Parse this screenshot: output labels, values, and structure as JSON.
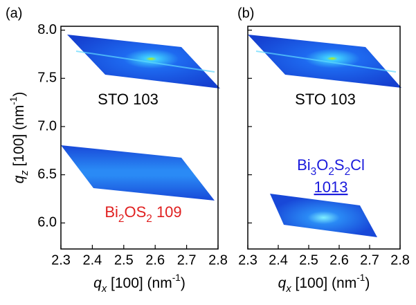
{
  "chart_data": [
    {
      "type": "map",
      "panel_label": "(a)",
      "xlabel": [
        {
          "text": "q",
          "style": "italic"
        },
        {
          "text": "x",
          "style": "sub italic"
        },
        {
          "text": " [100] (nm",
          "style": ""
        },
        {
          "text": "-1",
          "style": "sup"
        },
        {
          "text": ")",
          "style": ""
        }
      ],
      "ylabel": [
        {
          "text": "q",
          "style": "italic"
        },
        {
          "text": "z",
          "style": "sub italic"
        },
        {
          "text": " [100] (nm",
          "style": ""
        },
        {
          "text": "-1",
          "style": "sup"
        },
        {
          "text": ")",
          "style": ""
        }
      ],
      "xlim": [
        2.3,
        2.8
      ],
      "xticks": [
        2.3,
        2.4,
        2.5,
        2.6,
        2.7,
        2.8
      ],
      "ylim": [
        5.73,
        8.04
      ],
      "yticks": [
        {
          "value": 8,
          "label": "8.0"
        },
        7.5,
        {
          "value": 7,
          "label": "7.0"
        },
        6.5,
        {
          "value": 6,
          "label": "6.0"
        }
      ],
      "annotations": [
        {
          "color": "#000000",
          "parts": [
            {
              "text": "STO 103",
              "style": ""
            }
          ]
        },
        {
          "color": "#e02020",
          "parts": [
            {
              "text": "Bi",
              "style": ""
            },
            {
              "text": "2",
              "style": "sub"
            },
            {
              "text": "OS",
              "style": ""
            },
            {
              "text": "2",
              "style": "sub"
            },
            {
              "text": " 109",
              "style": ""
            }
          ]
        }
      ]
    },
    {
      "type": "map",
      "panel_label": "(b)",
      "xlabel": [
        {
          "text": "q",
          "style": "italic"
        },
        {
          "text": "x",
          "style": "sub italic"
        },
        {
          "text": " [100] (nm",
          "style": ""
        },
        {
          "text": "-1",
          "style": "sup"
        },
        {
          "text": ")",
          "style": ""
        }
      ],
      "xlim": [
        2.3,
        2.8
      ],
      "xticks": [
        2.3,
        2.4,
        2.5,
        2.6,
        2.7,
        2.8
      ],
      "ylim": [
        5.73,
        8.04
      ],
      "yticks": [
        8,
        7.5,
        7,
        6.5,
        6
      ],
      "annotations": [
        {
          "color": "#000000",
          "parts": [
            {
              "text": "STO 103",
              "style": ""
            }
          ]
        },
        {
          "color": "#1a1adc",
          "parts": [
            {
              "text": "Bi",
              "style": ""
            },
            {
              "text": "3",
              "style": "sub"
            },
            {
              "text": "O",
              "style": ""
            },
            {
              "text": "2",
              "style": "sub"
            },
            {
              "text": "S",
              "style": ""
            },
            {
              "text": "2",
              "style": "sub"
            },
            {
              "text": "Cl",
              "style": ""
            }
          ]
        },
        {
          "color": "#1a1adc",
          "parts": [
            {
              "text": "1013",
              "style": "underline"
            }
          ]
        }
      ]
    }
  ]
}
